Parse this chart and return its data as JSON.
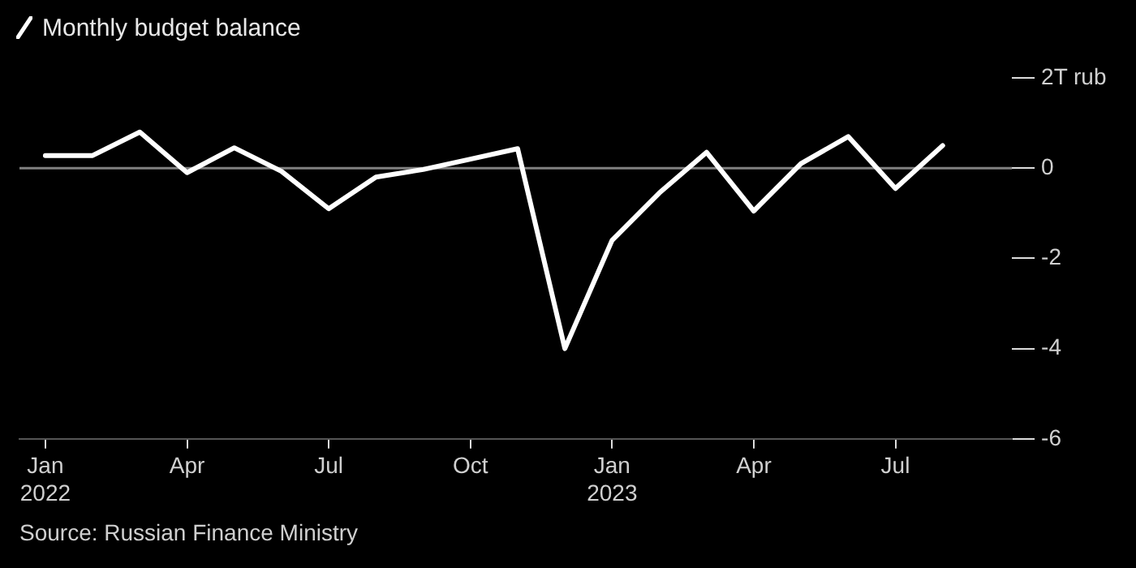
{
  "chart_data": {
    "type": "line",
    "title": "Monthly budget balance",
    "x": [
      "2022-01",
      "2022-02",
      "2022-03",
      "2022-04",
      "2022-05",
      "2022-06",
      "2022-07",
      "2022-08",
      "2022-09",
      "2022-10",
      "2022-11",
      "2022-12",
      "2023-01",
      "2023-02",
      "2023-03",
      "2023-04",
      "2023-05",
      "2023-06",
      "2023-07",
      "2023-08"
    ],
    "series": [
      {
        "color": "#ffffff",
        "values": [
          0.28,
          0.28,
          0.8,
          -0.1,
          0.45,
          -0.07,
          -0.9,
          -0.2,
          -0.03,
          0.2,
          0.43,
          -4.0,
          -1.6,
          -0.55,
          0.35,
          -0.95,
          0.1,
          0.7,
          -0.45,
          0.5
        ]
      }
    ],
    "xlim": [
      "2021-12-15",
      "2023-09-15"
    ],
    "xticks": [
      {
        "value": "2022-01",
        "label": "Jan 2022"
      },
      {
        "value": "2022-04",
        "label": "Apr"
      },
      {
        "value": "2022-07",
        "label": "Jul"
      },
      {
        "value": "2022-10",
        "label": "Oct"
      },
      {
        "value": "2023-01",
        "label": "Jan 2023"
      },
      {
        "value": "2023-04",
        "label": "Apr"
      },
      {
        "value": "2023-07",
        "label": "Jul"
      }
    ],
    "ylim": [
      -6,
      2
    ],
    "yticks": [
      {
        "value": 2,
        "label": "2T rub"
      },
      0,
      -2,
      -4,
      -6
    ],
    "ref_lines": [
      {
        "axis": "y",
        "value": 0,
        "color": "#808080"
      }
    ],
    "grid": false,
    "legend": false,
    "marker": "none",
    "line_style": "solid",
    "annotations": [
      "Source: Russian Finance Ministry"
    ]
  }
}
